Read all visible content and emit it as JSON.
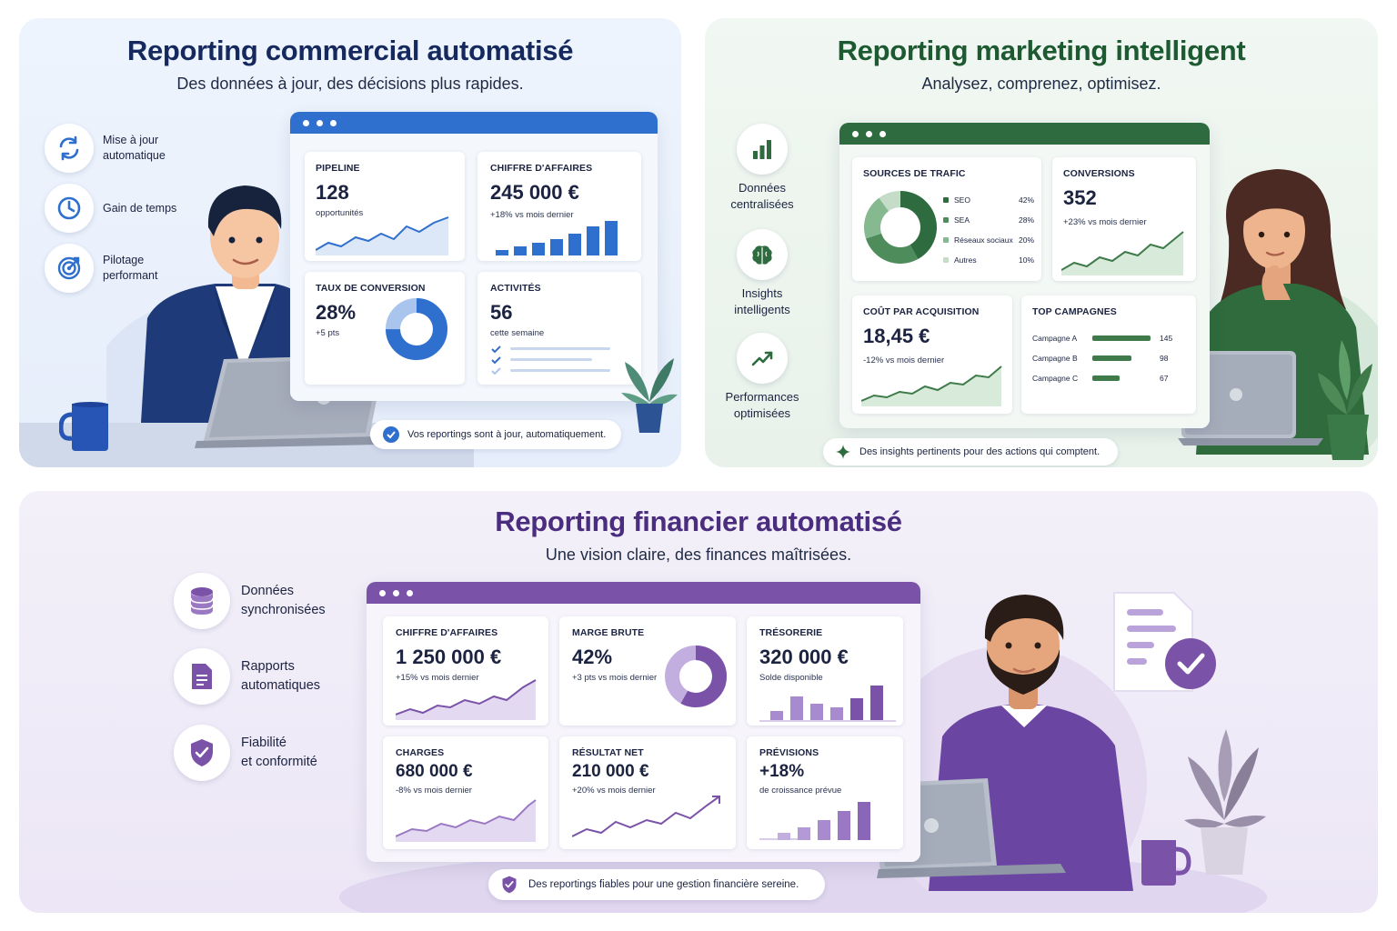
{
  "commercial": {
    "title": "Reporting commercial automatisé",
    "subtitle": "Des données à jour, des décisions plus rapides.",
    "features": [
      {
        "label_1": "Mise à jour",
        "label_2": "automatique",
        "icon": "refresh-icon"
      },
      {
        "label_1": "Gain de temps",
        "label_2": "",
        "icon": "clock-icon"
      },
      {
        "label_1": "Pilotage",
        "label_2": "performant",
        "icon": "target-icon"
      }
    ],
    "cards": {
      "pipeline": {
        "label": "PIPELINE",
        "value": "128",
        "sub": "opportunités"
      },
      "ca": {
        "label": "CHIFFRE D'AFFAIRES",
        "value": "245 000 €",
        "sub": "+18% vs mois dernier"
      },
      "conversion": {
        "label": "TAUX DE CONVERSION",
        "value": "28%",
        "sub": "+5 pts",
        "progress": 0.28
      },
      "activites": {
        "label": "ACTIVITÉS",
        "value": "56",
        "sub": "cette semaine"
      }
    },
    "footer": "Vos reportings sont à jour, automatiquement.",
    "accent": "#2f6fce"
  },
  "marketing": {
    "title": "Reporting marketing intelligent",
    "subtitle": "Analysez, comprenez, optimisez.",
    "features": [
      {
        "label_1": "Données",
        "label_2": "centralisées",
        "icon": "bar-chart-icon"
      },
      {
        "label_1": "Insights",
        "label_2": "intelligents",
        "icon": "brain-icon"
      },
      {
        "label_1": "Performances",
        "label_2": "optimisées",
        "icon": "trend-up-icon"
      }
    ],
    "sources": {
      "label": "SOURCES DE TRAFIC",
      "items": [
        {
          "name": "SEO",
          "pct": "42%",
          "value": 42,
          "color": "#2e6b3f"
        },
        {
          "name": "SEA",
          "pct": "28%",
          "value": 28,
          "color": "#4f8c5c"
        },
        {
          "name": "Réseaux sociaux",
          "pct": "20%",
          "value": 20,
          "color": "#86b98f"
        },
        {
          "name": "Autres",
          "pct": "10%",
          "value": 10,
          "color": "#c4dcc8"
        }
      ]
    },
    "conversions": {
      "label": "CONVERSIONS",
      "value": "352",
      "sub": "+23% vs mois dernier"
    },
    "cpa": {
      "label": "COÛT PAR ACQUISITION",
      "value": "18,45 €",
      "sub": "-12% vs mois dernier"
    },
    "campaigns": {
      "label": "TOP CAMPAGNES",
      "items": [
        {
          "name": "Campagne A",
          "value": 145
        },
        {
          "name": "Campagne B",
          "value": 98
        },
        {
          "name": "Campagne C",
          "value": 67
        }
      ]
    },
    "footer": "Des insights pertinents pour des actions qui comptent.",
    "accent": "#2e6b3f"
  },
  "finance": {
    "title": "Reporting financier automatisé",
    "subtitle": "Une vision claire, des finances maîtrisées.",
    "features": [
      {
        "label_1": "Données",
        "label_2": "synchronisées",
        "icon": "database-icon"
      },
      {
        "label_1": "Rapports",
        "label_2": "automatiques",
        "icon": "document-icon"
      },
      {
        "label_1": "Fiabilité",
        "label_2": "et conformité",
        "icon": "shield-check-icon"
      }
    ],
    "cards": {
      "ca": {
        "label": "CHIFFRE D'AFFAIRES",
        "value": "1 250 000 €",
        "sub": "+15% vs mois dernier"
      },
      "marge": {
        "label": "MARGE BRUTE",
        "value": "42%",
        "sub": "+3 pts vs mois dernier",
        "progress": 0.42
      },
      "tresorerie": {
        "label": "TRÉSORERIE",
        "value": "320 000 €",
        "sub": "Solde disponible"
      },
      "charges": {
        "label": "CHARGES",
        "value": "680 000 €",
        "sub": "-8% vs mois dernier"
      },
      "resultat": {
        "label": "RÉSULTAT NET",
        "value": "210 000 €",
        "sub": "+20% vs mois dernier"
      },
      "previsions": {
        "label": "PRÉVISIONS",
        "value": "+18%",
        "sub": "de croissance prévue"
      }
    },
    "footer": "Des reportings fiables pour une gestion financière sereine.",
    "accent": "#7a52a8"
  }
}
